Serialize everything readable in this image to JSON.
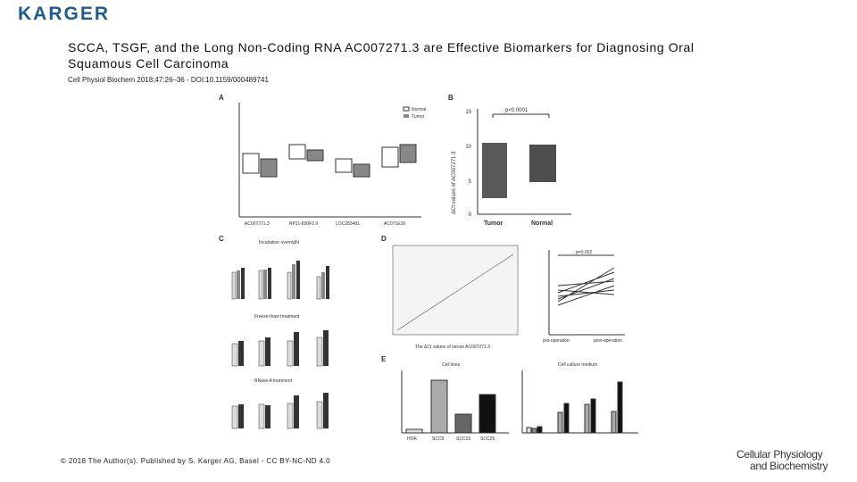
{
  "header": {
    "logo": "KARGER"
  },
  "title": "SCCA, TSGF, and the Long Non-Coding RNA AC007271.3 are Effective Biomarkers for Diagnosing Oral Squamous Cell Carcinoma",
  "citation": "Cell Physiol Biochem 2018;47:26–36 - DOI:10.1159/000489741",
  "figure": {
    "A": {
      "label": "A",
      "legend": [
        "Normal",
        "Tumor"
      ],
      "categories": [
        "AC007271.3",
        "RP11-890F2.9",
        "LOC283481",
        "AC071E26"
      ]
    },
    "B": {
      "label": "B",
      "p": "p<0.0001",
      "y_label": "ΔCt values of AC007271.3",
      "categories": [
        "Tumor",
        "Normal"
      ],
      "yticks": [
        "15",
        "10",
        "5",
        "0"
      ]
    },
    "C": {
      "label": "C",
      "subtitles": [
        "Incubation overnight",
        "Freeze-thaw treatment",
        "RNase A treatment"
      ]
    },
    "D": {
      "label": "D",
      "p": "p=0.002",
      "x_label": "The ΔCt values of serum AC007271.3",
      "categories": [
        "pre-operation",
        "post-operation"
      ]
    },
    "E": {
      "label": "E",
      "subtitles": [
        "Cell lines",
        "Cell culture medium"
      ],
      "categories": [
        "HOK",
        "SCC9",
        "SCC15",
        "SCC25"
      ]
    }
  },
  "footer": {
    "copyright": "© 2018 The Author(s). Published by S. Karger AG, Basel - CC BY-NC-ND 4.0",
    "journal": [
      "Cellular Physiology",
      "and Biochemistry"
    ]
  }
}
